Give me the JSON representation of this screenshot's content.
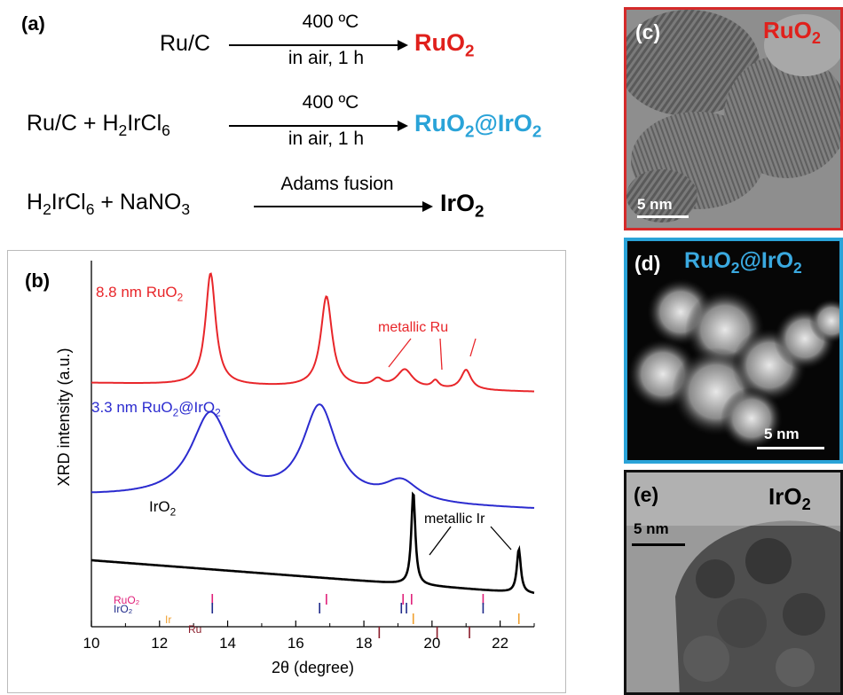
{
  "panel_a": {
    "label": "(a)",
    "reactions": [
      {
        "reactants_html": "Ru/C",
        "cond_top": "400 ºC",
        "cond_bottom": "in air, 1 h",
        "product_html": "RuO<sub>2</sub>",
        "product_color": "#e0201c"
      },
      {
        "reactants_html": "Ru/C + H<sub>2</sub>IrCl<sub>6</sub>",
        "cond_top": "400 ºC",
        "cond_bottom": "in air, 1 h",
        "product_html": "RuO<sub>2</sub>@IrO<sub>2</sub>",
        "product_color": "#2aa3d8"
      },
      {
        "reactants_html": "H<sub>2</sub>IrCl<sub>6</sub> + NaNO<sub>3</sub>",
        "cond_top": "Adams fusion",
        "cond_bottom": "",
        "product_html": "IrO<sub>2</sub>",
        "product_color": "#000000"
      }
    ]
  },
  "chart_data": {
    "type": "line",
    "panel_label": "(b)",
    "xlabel": "2θ (degree)",
    "ylabel": "XRD intensity (a.u.)",
    "xlim": [
      10,
      23
    ],
    "x_ticks": [
      10,
      12,
      14,
      16,
      18,
      20,
      22
    ],
    "series": [
      {
        "name": "8.8 nm RuO2",
        "label_html": "8.8 nm RuO<sub>2</sub>",
        "color": "#e8262a",
        "peaks": [
          {
            "x": 13.5,
            "height": 0.9,
            "width": 0.18
          },
          {
            "x": 16.9,
            "height": 0.73,
            "width": 0.2
          },
          {
            "x": 18.4,
            "height": 0.06,
            "width": 0.18
          },
          {
            "x": 19.2,
            "height": 0.15,
            "width": 0.28
          },
          {
            "x": 20.1,
            "height": 0.06,
            "width": 0.12
          },
          {
            "x": 21.0,
            "height": 0.16,
            "width": 0.18
          }
        ],
        "baseline": [
          0.08,
          0.0
        ]
      },
      {
        "name": "3.3 nm RuO2@IrO2",
        "label_html": "3.3 nm RuO<sub>2</sub>@IrO<sub>2</sub>",
        "color": "#2b2bcf",
        "peaks": [
          {
            "x": 13.5,
            "height": 0.66,
            "width": 0.7
          },
          {
            "x": 16.7,
            "height": 0.73,
            "width": 0.6
          },
          {
            "x": 19.1,
            "height": 0.16,
            "width": 0.6
          }
        ],
        "baseline": [
          0.03,
          0.0
        ]
      },
      {
        "name": "IrO2",
        "label_html": "IrO<sub>2</sub>",
        "color": "#000000",
        "peaks": [
          {
            "x": 19.45,
            "height": 0.7,
            "width": 0.07
          },
          {
            "x": 22.55,
            "height": 0.33,
            "width": 0.07
          }
        ],
        "baseline": [
          0.14,
          0.0
        ]
      }
    ],
    "annotations": [
      "metallic Ru",
      "metallic Ir"
    ],
    "reference_lines": [
      {
        "name": "RuO₂",
        "color": "#e0207a",
        "positions": [
          13.55,
          16.9,
          19.15,
          19.4,
          21.5
        ]
      },
      {
        "name": "IrO₂",
        "color": "#1f2a8a",
        "positions": [
          13.55,
          16.7,
          19.1,
          19.25,
          21.5
        ]
      },
      {
        "name": "Ir",
        "color": "#f0a030",
        "positions": [
          19.45,
          22.55
        ]
      },
      {
        "name": "Ru",
        "color": "#8a1c2a",
        "positions": [
          18.45,
          20.15,
          21.1
        ]
      }
    ]
  },
  "panel_c": {
    "label": "(c)",
    "title_html": "RuO<sub>2</sub>",
    "title_color": "#e0201c",
    "scale": "5 nm",
    "frame_color": "#d42a2a"
  },
  "panel_d": {
    "label": "(d)",
    "title_html": "RuO<sub>2</sub>@IrO<sub>2</sub>",
    "title_color": "#3aa9e0",
    "scale": "5 nm",
    "frame_color": "#2aa3d8"
  },
  "panel_e": {
    "label": "(e)",
    "title_html": "IrO<sub>2</sub>",
    "title_color": "#000000",
    "scale": "5 nm",
    "frame_color": "#111111"
  }
}
